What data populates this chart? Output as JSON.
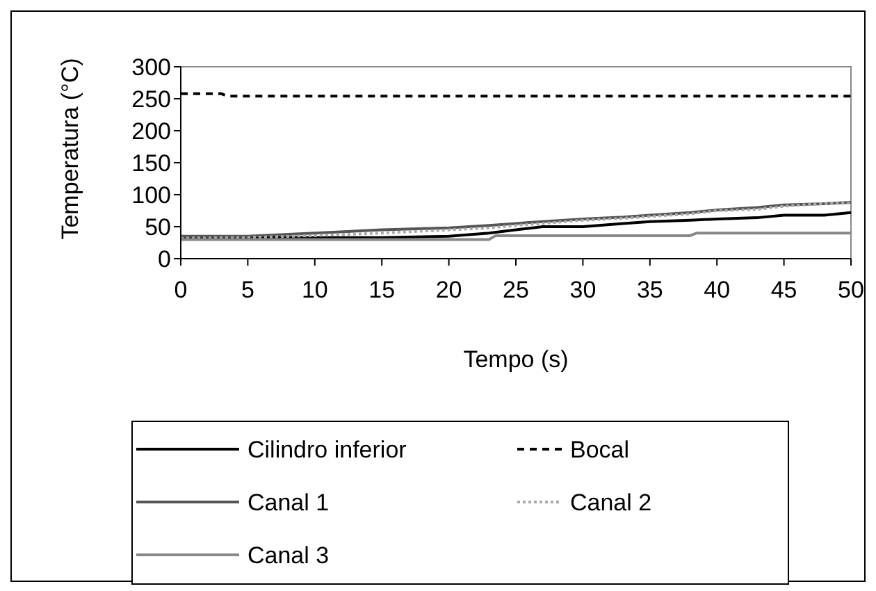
{
  "chart_data": {
    "type": "line",
    "xlabel": "Tempo (s)",
    "ylabel": "Temperatura (°C)",
    "xlim": [
      0,
      50
    ],
    "ylim": [
      0,
      300
    ],
    "xticks": [
      0,
      5,
      10,
      15,
      20,
      25,
      30,
      35,
      40,
      45,
      50
    ],
    "yticks": [
      0,
      50,
      100,
      150,
      200,
      250,
      300
    ],
    "grid": false,
    "legend": "bottom",
    "marker": "none",
    "series": [
      {
        "name": "Cilindro inferior",
        "color": "#000000",
        "line_style": "solid",
        "x": [
          0,
          15,
          20,
          23,
          25,
          27,
          30,
          33,
          35,
          38,
          40,
          43,
          45,
          48,
          50
        ],
        "values": [
          33,
          33,
          35,
          40,
          45,
          50,
          50,
          55,
          58,
          60,
          62,
          64,
          68,
          68,
          72
        ]
      },
      {
        "name": "Bocal",
        "color": "#000000",
        "line_style": "dashed",
        "x": [
          0,
          3,
          3.5,
          50
        ],
        "values": [
          258,
          258,
          254,
          254
        ]
      },
      {
        "name": "Canal 1",
        "color": "#555555",
        "line_style": "solid",
        "x": [
          0,
          5,
          10,
          15,
          20,
          23,
          25,
          27,
          30,
          33,
          35,
          38,
          40,
          43,
          45,
          48,
          50
        ],
        "values": [
          35,
          35,
          40,
          45,
          48,
          52,
          55,
          58,
          62,
          65,
          68,
          72,
          76,
          80,
          84,
          86,
          88
        ]
      },
      {
        "name": "Canal 2",
        "color": "#aaaaaa",
        "line_style": "dotted",
        "x": [
          0,
          5,
          10,
          15,
          20,
          23,
          25,
          27,
          30,
          33,
          35,
          38,
          40,
          43,
          45,
          48,
          50
        ],
        "values": [
          32,
          33,
          36,
          40,
          45,
          48,
          52,
          55,
          60,
          63,
          66,
          70,
          75,
          77,
          82,
          86,
          87
        ]
      },
      {
        "name": "Canal 3",
        "color": "#888888",
        "line_style": "solid",
        "x": [
          0,
          23,
          23.5,
          38,
          38.5,
          50
        ],
        "values": [
          30,
          30,
          36,
          36,
          40,
          40
        ]
      }
    ]
  }
}
